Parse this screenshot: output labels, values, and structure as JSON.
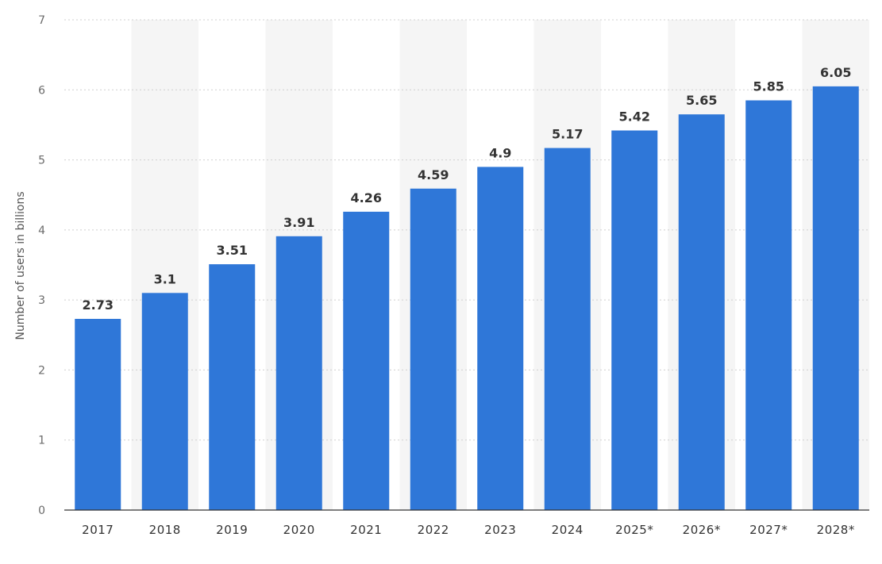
{
  "chart_data": {
    "type": "bar",
    "categories": [
      "2017",
      "2018",
      "2019",
      "2020",
      "2021",
      "2022",
      "2023",
      "2024",
      "2025*",
      "2026*",
      "2027*",
      "2028*"
    ],
    "values": [
      2.73,
      3.1,
      3.51,
      3.91,
      4.26,
      4.59,
      4.9,
      5.17,
      5.42,
      5.65,
      5.85,
      6.05
    ],
    "value_labels": [
      "2.73",
      "3.1",
      "3.51",
      "3.91",
      "4.26",
      "4.59",
      "4.9",
      "5.17",
      "5.42",
      "5.65",
      "5.85",
      "6.05"
    ],
    "xlabel": "",
    "ylabel": "Number of users in billions",
    "ylim": [
      0,
      7
    ],
    "yticks": [
      "0",
      "1",
      "2",
      "3",
      "4",
      "5",
      "6",
      "7"
    ],
    "grid": true,
    "legend": "none",
    "colors": {
      "bar": "#2f77d8",
      "band": "#f5f5f5",
      "grid": "#cfcfcf",
      "axis": "#333333"
    }
  }
}
